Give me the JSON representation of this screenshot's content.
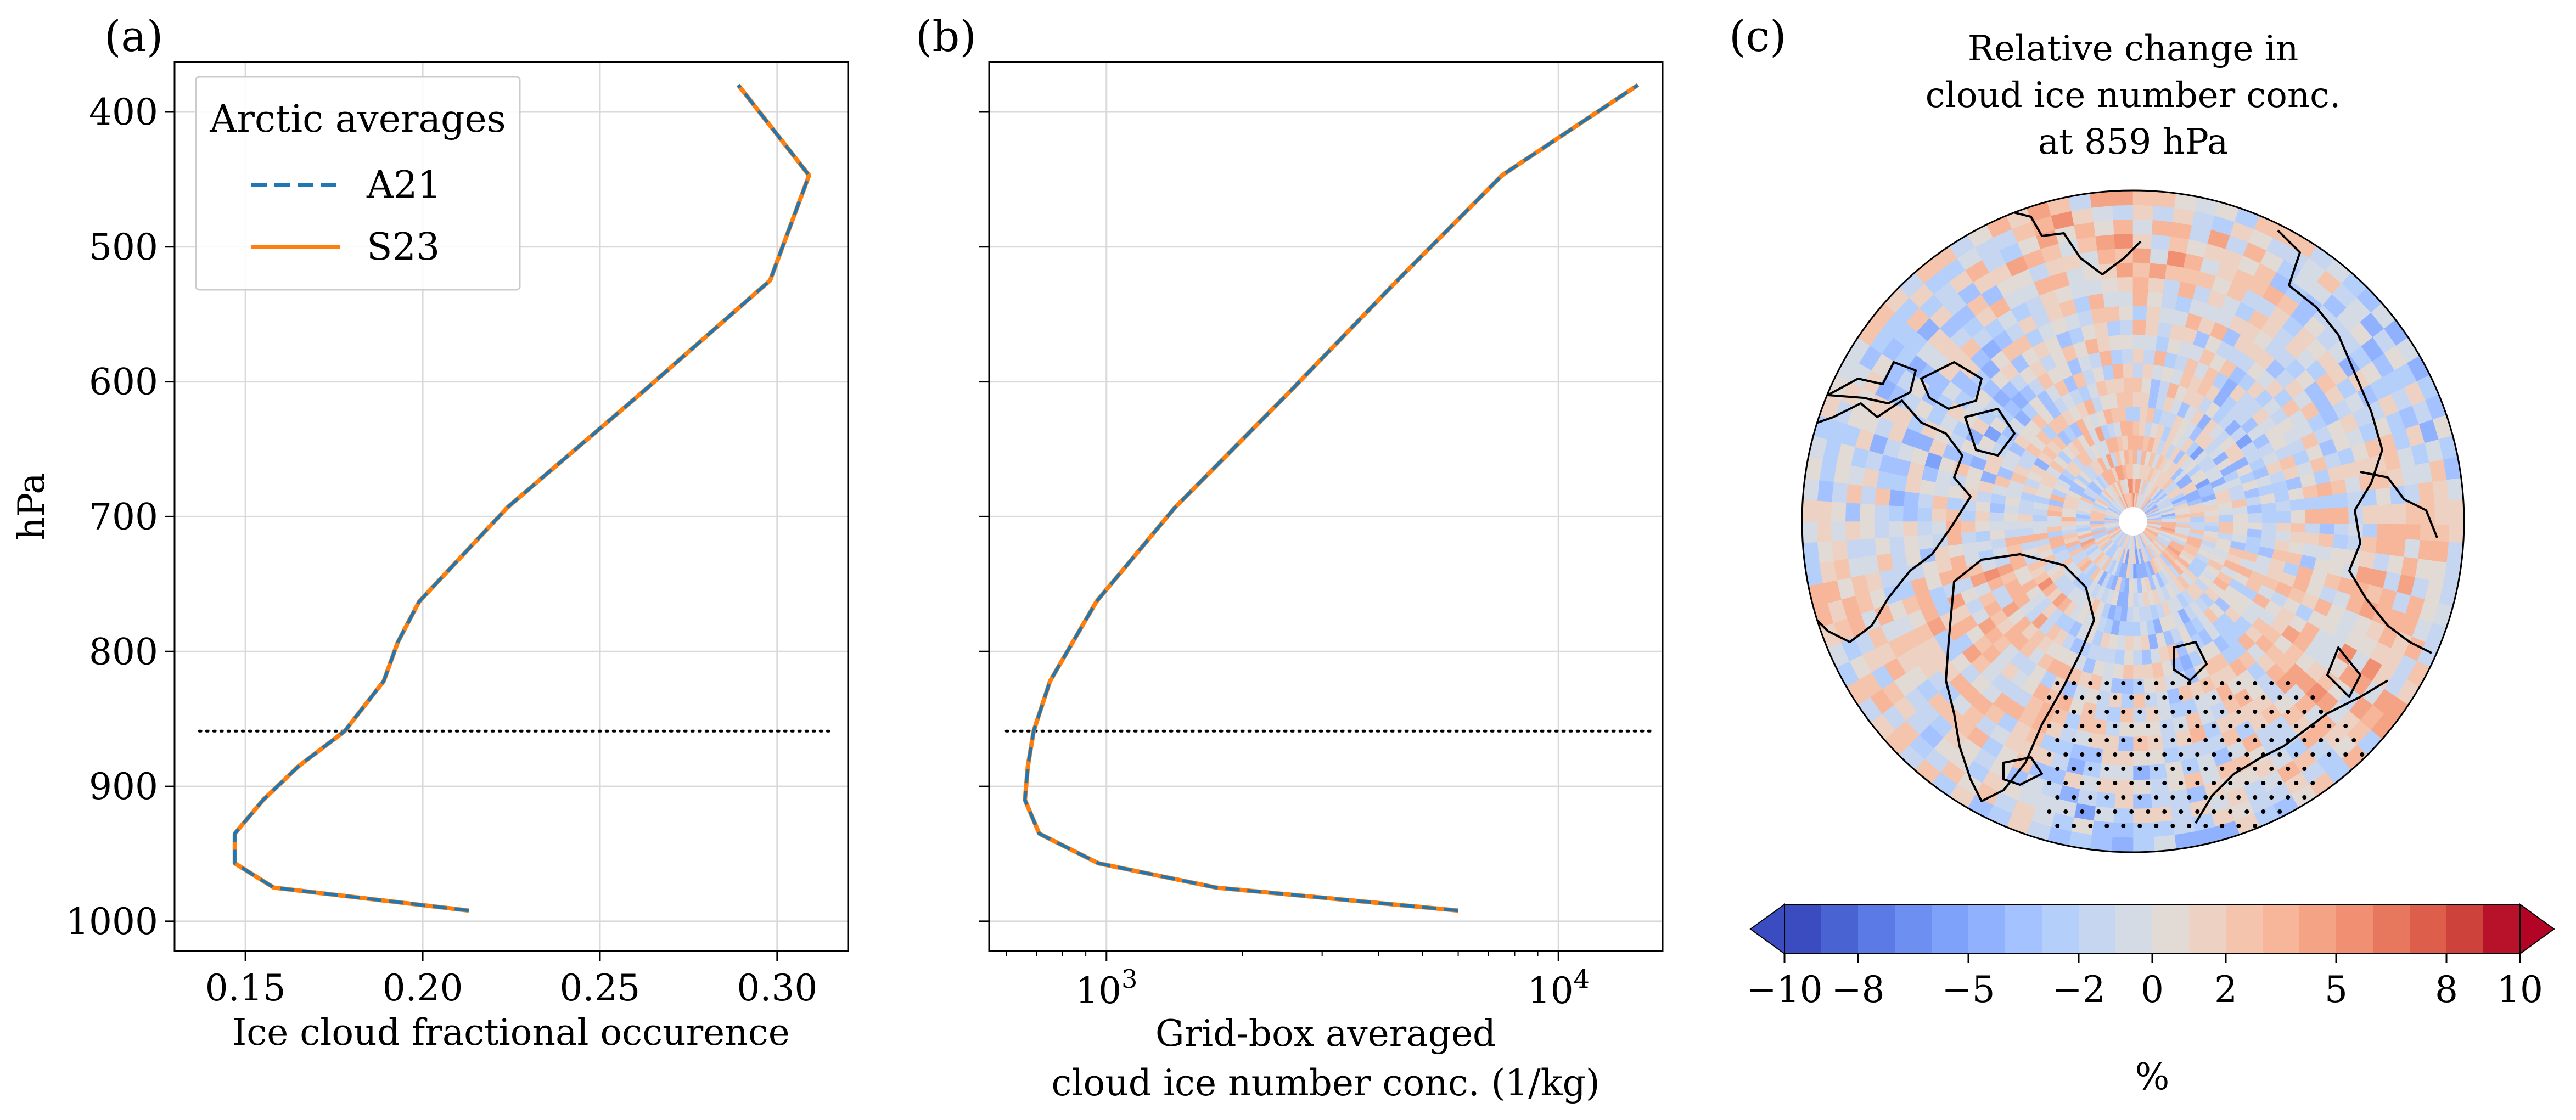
{
  "colors": {
    "A21": "#1f77b4",
    "S23": "#ff7f0e",
    "grid": "#d9d9d9",
    "axis": "#000000",
    "reference_line": "#000000"
  },
  "chart_data": [
    {
      "type": "line",
      "panel": "(a)",
      "title": "",
      "xlabel": "Ice cloud fractional occurence",
      "ylabel": "hPa",
      "xlim": [
        0.13,
        0.32
      ],
      "ylim": [
        1022,
        363
      ],
      "x_ticks": [
        0.15,
        0.2,
        0.25,
        0.3
      ],
      "x_tick_labels": [
        "0.15",
        "0.20",
        "0.25",
        "0.30"
      ],
      "y_ticks": [
        400,
        500,
        600,
        700,
        800,
        900,
        1000
      ],
      "y_tick_labels": [
        "400",
        "500",
        "600",
        "700",
        "800",
        "900",
        "1000"
      ],
      "grid": true,
      "reference_line": {
        "y": 859,
        "x_from": 0.137,
        "x_to": 0.315,
        "style": "dotted"
      },
      "legend": {
        "title": "Arctic averages",
        "placement": "upper-left",
        "entries": [
          "A21",
          "S23"
        ]
      },
      "y": [
        992,
        975,
        957,
        935,
        910,
        885,
        859,
        822,
        793,
        763,
        693,
        610,
        525,
        447,
        380
      ],
      "series": [
        {
          "name": "A21",
          "style": "dashed",
          "x": [
            0.213,
            0.158,
            0.147,
            0.147,
            0.155,
            0.165,
            0.178,
            0.189,
            0.193,
            0.199,
            0.224,
            0.261,
            0.298,
            0.309,
            0.289
          ]
        },
        {
          "name": "S23",
          "style": "solid",
          "x": [
            0.213,
            0.158,
            0.147,
            0.147,
            0.155,
            0.165,
            0.178,
            0.189,
            0.193,
            0.199,
            0.224,
            0.261,
            0.298,
            0.309,
            0.289
          ]
        }
      ]
    },
    {
      "type": "line",
      "panel": "(b)",
      "title": "",
      "xlabel": "Grid-box averaged",
      "xlabel_line2": "cloud ice number conc. (1/kg)",
      "ylabel": "",
      "x_scale": "log",
      "xlim": [
        550,
        17000
      ],
      "ylim": [
        1022,
        363
      ],
      "x_ticks": [
        1000,
        10000
      ],
      "x_tick_base": "10",
      "x_tick_exponents": [
        "3",
        "4"
      ],
      "y_ticks": [
        400,
        500,
        600,
        700,
        800,
        900,
        1000
      ],
      "grid": true,
      "reference_line": {
        "y": 859,
        "x_from": 600,
        "x_to": 16000,
        "style": "dotted"
      },
      "y": [
        992,
        975,
        957,
        935,
        910,
        885,
        859,
        822,
        763,
        693,
        610,
        525,
        447,
        380
      ],
      "series": [
        {
          "name": "A21",
          "style": "dashed",
          "x": [
            6000,
            1750,
            960,
            710,
            660,
            670,
            690,
            750,
            950,
            1420,
            2500,
            4400,
            7500,
            15000
          ]
        },
        {
          "name": "S23",
          "style": "solid",
          "x": [
            6000,
            1750,
            960,
            710,
            660,
            670,
            690,
            750,
            950,
            1420,
            2500,
            4400,
            7500,
            15000
          ]
        }
      ]
    },
    {
      "type": "heatmap",
      "panel": "(c)",
      "projection": "north-polar-stereographic",
      "title_lines": [
        "Relative change in",
        "cloud ice number conc.",
        "at 859 hPa"
      ],
      "colorbar": {
        "orientation": "horizontal",
        "extend": "both",
        "label": "%",
        "range": [
          -10,
          10
        ],
        "tick_labels": [
          "−10",
          "−8",
          "−5",
          "−2",
          "0",
          "2",
          "5",
          "8",
          "10"
        ],
        "colors": [
          "#3b4cc0",
          "#4a63d3",
          "#5b7ae5",
          "#6c8ff1",
          "#7ea2fa",
          "#90b2fe",
          "#a3c2ff",
          "#b5cffb",
          "#c6d6f1",
          "#d5dbe5",
          "#e2dad5",
          "#edd1c2",
          "#f4c4ad",
          "#f7b599",
          "#f5a385",
          "#f08f71",
          "#e7785d",
          "#dc5e4b",
          "#cd423b",
          "#b8122a"
        ],
        "under_color": "#3b4cc0",
        "over_color": "#b40426"
      }
    }
  ]
}
